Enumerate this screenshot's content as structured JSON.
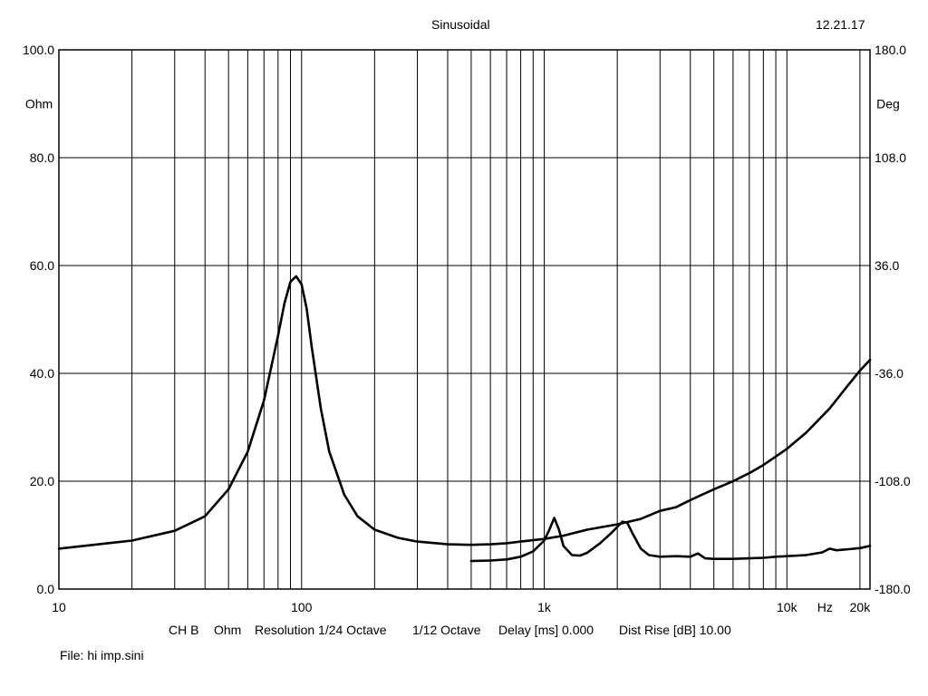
{
  "header": {
    "title": "Sinusoidal",
    "date": "12.21.17"
  },
  "footer": {
    "channel": "CH B",
    "unit": "Ohm",
    "resolution": "Resolution 1/24 Octave",
    "octave": "1/12 Octave",
    "delay": "Delay [ms] 0.000",
    "dist_rise": "Dist Rise [dB] 10.00",
    "file": "File: hi imp.sini"
  },
  "chart_data": {
    "type": "line",
    "title": "Sinusoidal",
    "xlabel": "Hz",
    "ylabel": "Ohm",
    "y2label": "Deg",
    "x_scale": "log",
    "xlim": [
      10,
      22000
    ],
    "ylim": [
      0,
      100
    ],
    "y2lim": [
      -180,
      180
    ],
    "grid": true,
    "x_ticks": [
      {
        "value": 10,
        "label": "10"
      },
      {
        "value": 100,
        "label": "100"
      },
      {
        "value": 1000,
        "label": "1k"
      },
      {
        "value": 10000,
        "label": "10k"
      },
      {
        "value": 20000,
        "label": "20k"
      }
    ],
    "x_unit_label": "Hz",
    "y_ticks": [
      {
        "value": 0,
        "label": "0.0"
      },
      {
        "value": 20,
        "label": "20.0"
      },
      {
        "value": 40,
        "label": "40.0"
      },
      {
        "value": 60,
        "label": "60.0"
      },
      {
        "value": 80,
        "label": "80.0"
      },
      {
        "value": 100,
        "label": "100.0"
      }
    ],
    "y2_ticks": [
      {
        "value": -180,
        "label": "-180.0"
      },
      {
        "value": -108,
        "label": "-108.0"
      },
      {
        "value": -36,
        "label": "-36.0"
      },
      {
        "value": 36,
        "label": "36.0"
      },
      {
        "value": 108,
        "label": "108.0"
      },
      {
        "value": 180,
        "label": "180.0"
      }
    ],
    "series": [
      {
        "axis": "left",
        "x": [
          10,
          20,
          30,
          40,
          50,
          60,
          70,
          80,
          85,
          90,
          95,
          100,
          105,
          110,
          120,
          130,
          150,
          170,
          200,
          250,
          300,
          400,
          500,
          600,
          700,
          800,
          1000,
          1200,
          1500,
          2000,
          2500,
          3000,
          3500,
          4000,
          5000,
          6000,
          7000,
          8000,
          10000,
          12000,
          15000,
          18000,
          20000,
          22000
        ],
        "y": [
          7.5,
          9.0,
          10.8,
          13.5,
          18.5,
          25.5,
          35.0,
          47.0,
          53.0,
          57.0,
          58.0,
          56.5,
          52.0,
          45.0,
          33.5,
          25.5,
          17.5,
          13.5,
          11.0,
          9.5,
          8.8,
          8.3,
          8.2,
          8.3,
          8.5,
          8.8,
          9.3,
          9.9,
          11.0,
          12.0,
          13.0,
          14.5,
          15.2,
          16.5,
          18.5,
          20.0,
          21.5,
          23.0,
          26.0,
          29.0,
          33.5,
          38.0,
          40.5,
          42.5
        ]
      },
      {
        "axis": "left",
        "x": [
          500,
          600,
          700,
          800,
          900,
          1000,
          1050,
          1100,
          1150,
          1200,
          1300,
          1400,
          1500,
          1700,
          1900,
          2100,
          2200,
          2300,
          2500,
          2700,
          3000,
          3500,
          4000,
          4300,
          4600,
          5000,
          6000,
          7000,
          8000,
          9000,
          10000,
          12000,
          14000,
          15000,
          16000,
          18000,
          20000,
          22000
        ],
        "y": [
          5.2,
          5.3,
          5.5,
          6.0,
          7.0,
          9.0,
          11.0,
          13.2,
          11.0,
          8.0,
          6.3,
          6.2,
          6.7,
          8.5,
          10.5,
          12.5,
          12.3,
          10.5,
          7.5,
          6.3,
          6.0,
          6.1,
          6.0,
          6.6,
          5.7,
          5.6,
          5.6,
          5.7,
          5.8,
          6.0,
          6.1,
          6.3,
          6.8,
          7.5,
          7.2,
          7.4,
          7.6,
          8.0
        ]
      }
    ]
  }
}
